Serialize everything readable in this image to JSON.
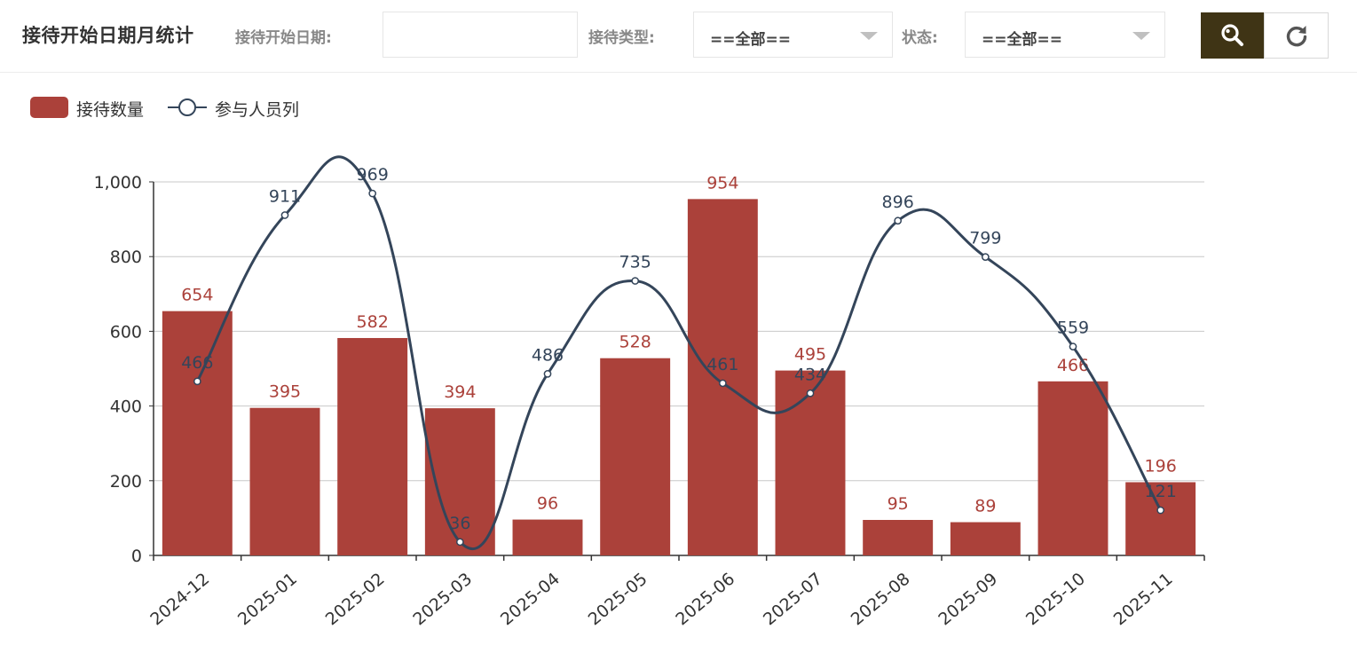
{
  "header": {
    "title": "接待开始日期月统计",
    "date_label": "接待开始日期:",
    "date_value": "",
    "type_label": "接待类型:",
    "type_value": "==全部==",
    "status_label": "状态:",
    "status_value": "==全部==",
    "search_icon": "search-icon",
    "refresh_icon": "refresh-icon",
    "search_button_color": "#3f3415"
  },
  "colors": {
    "bar": "#ab413a",
    "line": "#34455a",
    "bar_label": "#ab413a",
    "line_label": "#34455a",
    "grid": "#c8c8c8"
  },
  "chart_data": {
    "type": "bar",
    "title": "",
    "xlabel": "",
    "ylabel": "",
    "categories": [
      "2024-12",
      "2025-01",
      "2025-02",
      "2025-03",
      "2025-04",
      "2025-05",
      "2025-06",
      "2025-07",
      "2025-08",
      "2025-09",
      "2025-10",
      "2025-11"
    ],
    "ylim": [
      0,
      1000
    ],
    "yticks": [
      0,
      200,
      400,
      600,
      800,
      1000
    ],
    "ytick_labels": [
      "0",
      "200",
      "400",
      "600",
      "800",
      "1,000"
    ],
    "grid": true,
    "legend_position": "top-left",
    "series": [
      {
        "name": "接待数量",
        "type": "bar",
        "values": [
          654,
          395,
          582,
          394,
          96,
          528,
          954,
          495,
          95,
          89,
          466,
          196
        ]
      },
      {
        "name": "参与人员列",
        "type": "line",
        "smooth": true,
        "values": [
          466,
          911,
          969,
          36,
          486,
          735,
          461,
          434,
          896,
          799,
          559,
          121
        ]
      }
    ]
  }
}
